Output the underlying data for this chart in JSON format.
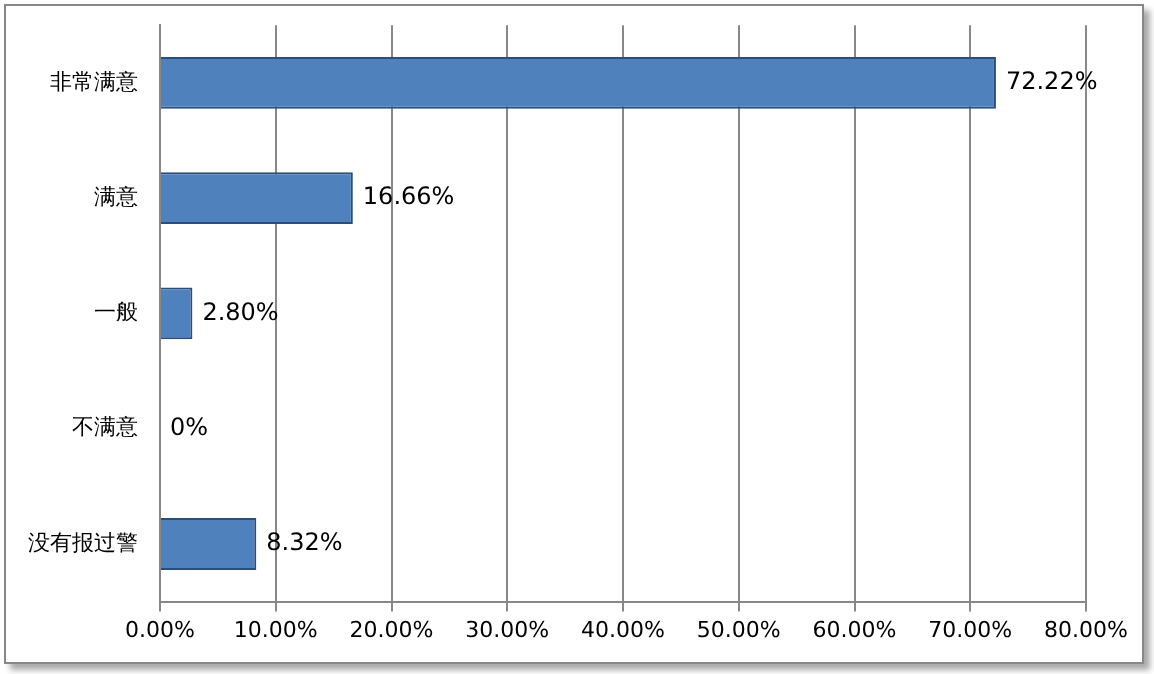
{
  "chart_data": {
    "type": "bar",
    "orientation": "horizontal",
    "categories": [
      "非常满意",
      "满意",
      "一般",
      "不满意",
      "没有报过警"
    ],
    "values": [
      72.22,
      16.66,
      2.8,
      0,
      8.32
    ],
    "value_labels": [
      "72.22%",
      "16.66%",
      "2.80%",
      "0%",
      "8.32%"
    ],
    "color": "#4f81bd",
    "xlim": [
      0,
      80
    ],
    "xticks": [
      {
        "value": 0,
        "label": "0.00%"
      },
      {
        "value": 10,
        "label": "10.00%"
      },
      {
        "value": 20,
        "label": "20.00%"
      },
      {
        "value": 30,
        "label": "30.00%"
      },
      {
        "value": 40,
        "label": "40.00%"
      },
      {
        "value": 50,
        "label": "50.00%"
      },
      {
        "value": 60,
        "label": "60.00%"
      },
      {
        "value": 70,
        "label": "70.00%"
      },
      {
        "value": 80,
        "label": "80.00%"
      }
    ],
    "grid": "x",
    "legend": false
  }
}
